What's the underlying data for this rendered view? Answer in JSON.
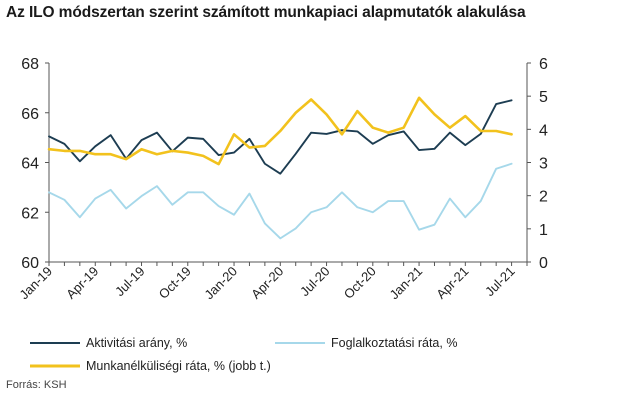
{
  "title": "Az ILO módszertan szerint számított munkapiaci alapmutatók alakulása",
  "source": "Forrás: KSH",
  "chart_data": {
    "type": "line",
    "x": [
      "2019-01",
      "2019-02",
      "2019-03",
      "2019-04",
      "2019-05",
      "2019-06",
      "2019-07",
      "2019-08",
      "2019-09",
      "2019-10",
      "2019-11",
      "2019-12",
      "2020-01",
      "2020-02",
      "2020-03",
      "2020-04",
      "2020-05",
      "2020-06",
      "2020-07",
      "2020-08",
      "2020-09",
      "2020-10",
      "2020-11",
      "2020-12",
      "2021-01",
      "2021-02",
      "2021-03",
      "2021-04",
      "2021-05",
      "2021-06",
      "2021-07",
      "2021-08"
    ],
    "x_tick_labels": [
      "Jan-19",
      "Apr-19",
      "Jul-19",
      "Oct-19",
      "Jan-20",
      "Apr-20",
      "Jul-20",
      "Oct-20",
      "Jan-21",
      "Apr-21",
      "Jul-21"
    ],
    "y_left": {
      "ylim": [
        60,
        68
      ],
      "ticks": [
        "60",
        "62",
        "64",
        "66",
        "68"
      ]
    },
    "y_right": {
      "ylim": [
        0,
        6
      ],
      "ticks": [
        "0",
        "1",
        "2",
        "3",
        "4",
        "5",
        "6"
      ]
    },
    "grid": false,
    "legend_position": "bottom",
    "series": [
      {
        "name": "Aktivitási arány, %",
        "axis": "left",
        "color": "#1d3d52",
        "values": [
          65.05,
          64.75,
          64.05,
          64.65,
          65.1,
          64.15,
          64.9,
          65.2,
          64.45,
          65.0,
          64.95,
          64.3,
          64.4,
          64.95,
          63.95,
          63.55,
          64.35,
          65.2,
          65.15,
          65.3,
          65.25,
          64.75,
          65.1,
          65.25,
          64.5,
          64.55,
          65.2,
          64.7,
          65.15,
          66.35,
          66.5,
          null
        ]
      },
      {
        "name": "Foglalkoztatási ráta, %",
        "axis": "left",
        "color": "#a6d8ea",
        "values": [
          62.8,
          62.5,
          61.8,
          62.55,
          62.9,
          62.15,
          62.65,
          63.05,
          62.3,
          62.8,
          62.8,
          62.25,
          61.9,
          62.75,
          61.55,
          60.95,
          61.35,
          62.0,
          62.2,
          62.8,
          62.2,
          62.0,
          62.45,
          62.45,
          61.3,
          61.5,
          62.55,
          61.8,
          62.45,
          63.75,
          63.95,
          null
        ]
      },
      {
        "name": "Munkanélküliségi ráta, % (jobb t.)",
        "axis": "right",
        "color": "#f2c21d",
        "values": [
          3.4,
          3.35,
          3.35,
          3.25,
          3.25,
          3.1,
          3.4,
          3.25,
          3.35,
          3.3,
          3.2,
          2.95,
          3.85,
          3.45,
          3.5,
          3.95,
          4.5,
          4.9,
          4.45,
          3.85,
          4.55,
          4.05,
          3.9,
          4.05,
          4.95,
          4.45,
          4.05,
          4.4,
          3.95,
          3.95,
          3.85,
          null
        ]
      }
    ]
  }
}
